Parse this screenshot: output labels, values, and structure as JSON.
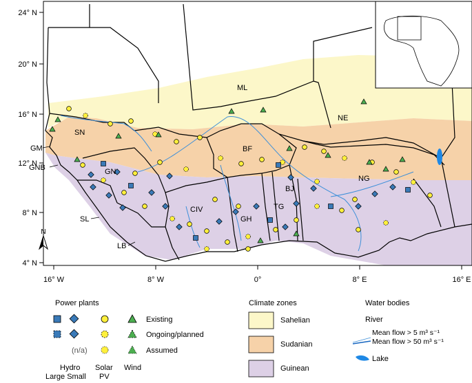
{
  "lat_labels": [
    "24° N",
    "20° N",
    "16° N",
    "12° N",
    "8° N",
    "4° N"
  ],
  "lon_labels": [
    "16° W",
    "8° W",
    "0°",
    "8° E",
    "16° E"
  ],
  "country_codes": [
    "SN",
    "GM",
    "GNB",
    "GN",
    "SL",
    "LB",
    "CIV",
    "GH",
    "TG",
    "BJ",
    "NG",
    "BF",
    "ML",
    "NE"
  ],
  "north_arrow": "N",
  "legend": {
    "power_plants_title": "Power plants",
    "status": [
      "Existing",
      "Ongoing/planned",
      "Assumed"
    ],
    "na_text": "(n/a)",
    "col_hydro": "Hydro",
    "col_large_small": "Large Small",
    "col_solar": "Solar",
    "col_pv": "PV",
    "col_wind": "Wind",
    "climate_title": "Climate zones",
    "climate_zones": [
      {
        "name": "Sahelian",
        "color": "#fcf7c9"
      },
      {
        "name": "Sudanian",
        "color": "#f6d2a9"
      },
      {
        "name": "Guinean",
        "color": "#ddd0e6"
      }
    ],
    "water_title": "Water bodies",
    "river_label": "River",
    "flow_low": "Mean flow > 5 m³ s⁻¹",
    "flow_high": "Mean flow > 50 m³ s⁻¹",
    "lake_label": "Lake"
  },
  "colors": {
    "hydro": "#3a7ab8",
    "solar": "#fff03c",
    "wind": "#4caf50",
    "river": "#3d8fd9",
    "lake": "#1e88e5"
  }
}
